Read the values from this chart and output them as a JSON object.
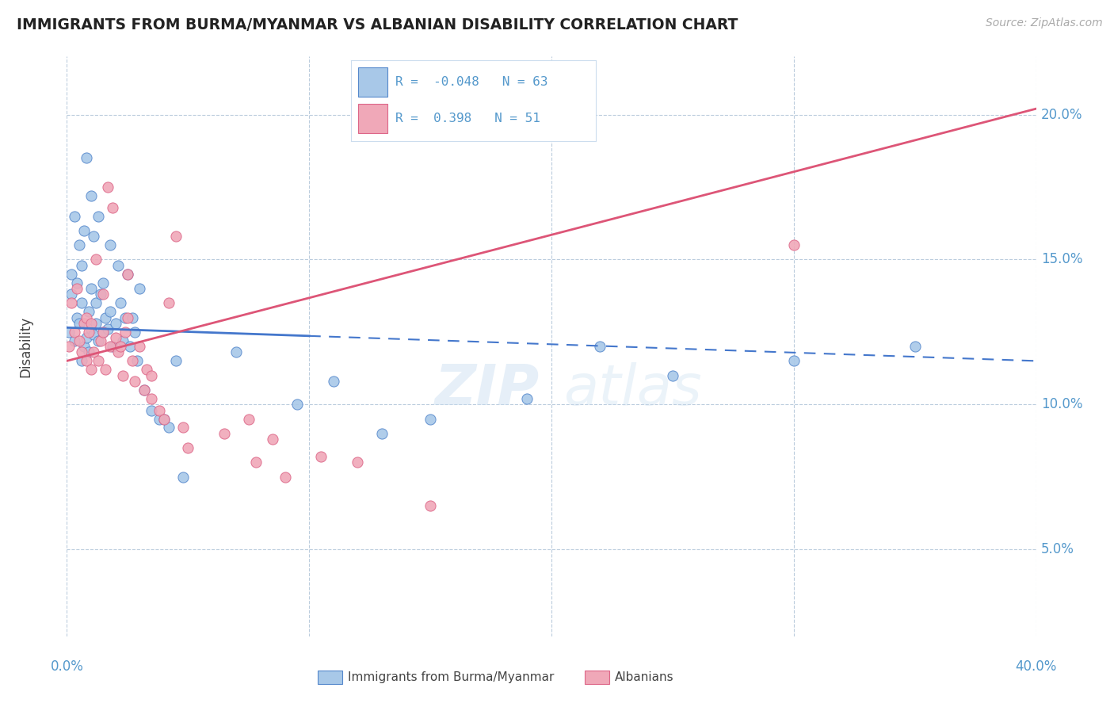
{
  "title": "IMMIGRANTS FROM BURMA/MYANMAR VS ALBANIAN DISABILITY CORRELATION CHART",
  "source_text": "Source: ZipAtlas.com",
  "ylabel": "Disability",
  "xlim": [
    0.0,
    40.0
  ],
  "ylim": [
    2.0,
    22.0
  ],
  "yticks": [
    5.0,
    10.0,
    15.0,
    20.0
  ],
  "xticks": [
    0.0,
    10.0,
    20.0,
    30.0,
    40.0
  ],
  "r1": -0.048,
  "n1": 63,
  "r2": 0.398,
  "n2": 51,
  "series1_color": "#a8c8e8",
  "series2_color": "#f0a8b8",
  "series1_edge_color": "#5588cc",
  "series2_edge_color": "#dd6688",
  "series1_line_color": "#4477cc",
  "series2_line_color": "#dd5577",
  "watermark": "ZIPatlas",
  "background_color": "#ffffff",
  "grid_color": "#bbccdd",
  "label_color": "#5599cc",
  "text_color": "#444444",
  "blue_solid_end_x": 10.0,
  "blue_x": [
    0.1,
    0.2,
    0.2,
    0.3,
    0.3,
    0.4,
    0.4,
    0.5,
    0.5,
    0.6,
    0.6,
    0.6,
    0.7,
    0.7,
    0.8,
    0.8,
    0.9,
    0.9,
    1.0,
    1.0,
    1.0,
    1.1,
    1.1,
    1.2,
    1.2,
    1.3,
    1.3,
    1.4,
    1.5,
    1.5,
    1.6,
    1.7,
    1.8,
    1.8,
    1.9,
    2.0,
    2.1,
    2.2,
    2.3,
    2.4,
    2.5,
    2.6,
    2.7,
    2.8,
    2.9,
    3.0,
    3.2,
    3.5,
    3.8,
    4.0,
    4.2,
    4.5,
    4.8,
    7.0,
    9.5,
    11.0,
    13.0,
    15.0,
    19.0,
    22.0,
    25.0,
    30.0,
    35.0
  ],
  "blue_y": [
    12.5,
    13.8,
    14.5,
    12.2,
    16.5,
    13.0,
    14.2,
    12.8,
    15.5,
    11.5,
    13.5,
    14.8,
    12.0,
    16.0,
    12.3,
    18.5,
    11.8,
    13.2,
    12.6,
    14.0,
    17.2,
    12.4,
    15.8,
    12.8,
    13.5,
    12.2,
    16.5,
    13.8,
    12.5,
    14.2,
    13.0,
    12.6,
    13.2,
    15.5,
    12.0,
    12.8,
    14.8,
    13.5,
    12.2,
    13.0,
    14.5,
    12.0,
    13.0,
    12.5,
    11.5,
    14.0,
    10.5,
    9.8,
    9.5,
    9.5,
    9.2,
    11.5,
    7.5,
    11.8,
    10.0,
    10.8,
    9.0,
    9.5,
    10.2,
    12.0,
    11.0,
    11.5,
    12.0
  ],
  "pink_x": [
    0.1,
    0.2,
    0.3,
    0.4,
    0.5,
    0.6,
    0.7,
    0.8,
    0.8,
    0.9,
    1.0,
    1.0,
    1.1,
    1.2,
    1.3,
    1.4,
    1.5,
    1.5,
    1.6,
    1.7,
    1.8,
    1.9,
    2.0,
    2.1,
    2.2,
    2.3,
    2.4,
    2.5,
    2.5,
    2.7,
    2.8,
    3.0,
    3.2,
    3.3,
    3.5,
    3.5,
    3.8,
    4.0,
    4.2,
    4.5,
    4.8,
    5.0,
    6.5,
    7.5,
    7.8,
    8.5,
    9.0,
    10.5,
    12.0,
    15.0,
    30.0
  ],
  "pink_y": [
    12.0,
    13.5,
    12.5,
    14.0,
    12.2,
    11.8,
    12.8,
    13.0,
    11.5,
    12.5,
    11.2,
    12.8,
    11.8,
    15.0,
    11.5,
    12.2,
    12.5,
    13.8,
    11.2,
    17.5,
    12.0,
    16.8,
    12.3,
    11.8,
    12.0,
    11.0,
    12.5,
    13.0,
    14.5,
    11.5,
    10.8,
    12.0,
    10.5,
    11.2,
    11.0,
    10.2,
    9.8,
    9.5,
    13.5,
    15.8,
    9.2,
    8.5,
    9.0,
    9.5,
    8.0,
    8.8,
    7.5,
    8.2,
    8.0,
    6.5,
    15.5
  ]
}
